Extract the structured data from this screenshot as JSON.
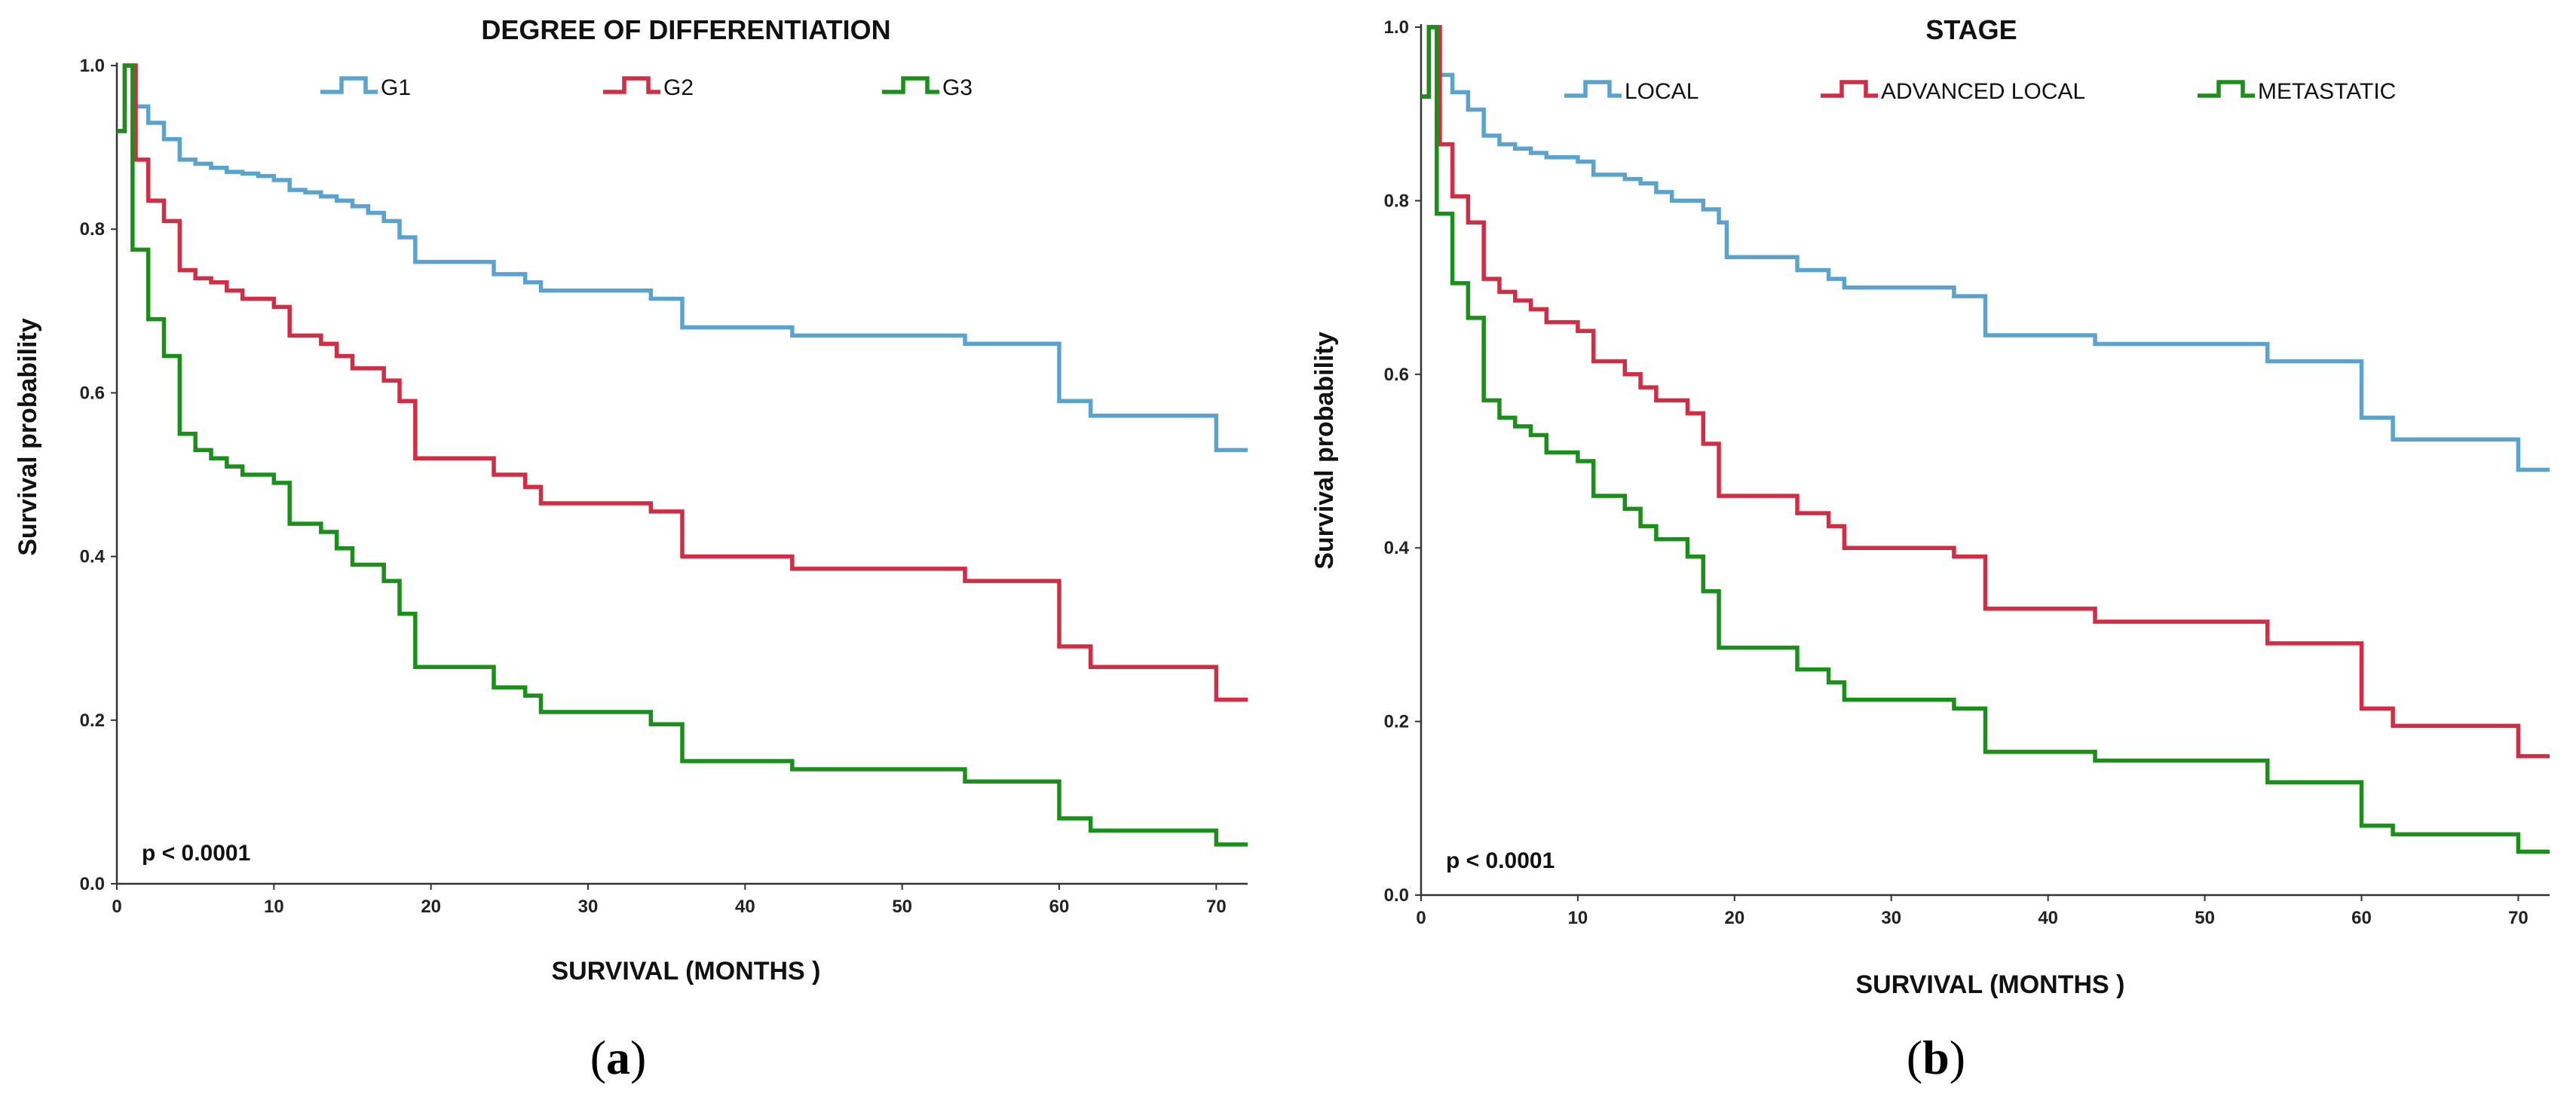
{
  "chart_data": [
    {
      "type": "line",
      "subtype": "kaplan-meier step",
      "panel_label": "a",
      "title": "DEGREE OF DIFFERENTIATION",
      "xlabel": "SURVIVAL (MONTHS )",
      "ylabel": "Survival probability",
      "xlim": [
        0,
        72
      ],
      "ylim": [
        0,
        1
      ],
      "x_ticks": [
        "0",
        "10",
        "20",
        "30",
        "40",
        "50",
        "60",
        "70"
      ],
      "y_ticks": [
        "0.0",
        "0.2",
        "0.4",
        "0.6",
        "0.8",
        "1.0"
      ],
      "annotation": "p < 0.0001",
      "legend_position": "top",
      "series": [
        {
          "name": "G1",
          "color": "#5ba3cf",
          "points": [
            [
              0,
              0.92
            ],
            [
              0.5,
              1.0
            ],
            [
              1.2,
              0.95
            ],
            [
              2,
              0.93
            ],
            [
              3,
              0.91
            ],
            [
              4,
              0.885
            ],
            [
              5,
              0.88
            ],
            [
              6,
              0.875
            ],
            [
              7,
              0.87
            ],
            [
              8,
              0.868
            ],
            [
              9,
              0.865
            ],
            [
              10,
              0.86
            ],
            [
              11,
              0.848
            ],
            [
              12,
              0.845
            ],
            [
              13,
              0.84
            ],
            [
              14,
              0.835
            ],
            [
              15,
              0.828
            ],
            [
              16,
              0.82
            ],
            [
              17,
              0.81
            ],
            [
              18,
              0.79
            ],
            [
              19,
              0.76
            ],
            [
              24,
              0.745
            ],
            [
              26,
              0.735
            ],
            [
              27,
              0.725
            ],
            [
              34,
              0.715
            ],
            [
              36,
              0.68
            ],
            [
              43,
              0.67
            ],
            [
              54,
              0.66
            ],
            [
              60,
              0.59
            ],
            [
              62,
              0.572
            ],
            [
              70,
              0.53
            ],
            [
              72,
              0.53
            ]
          ]
        },
        {
          "name": "G2",
          "color": "#d12e45",
          "points": [
            [
              0,
              0.92
            ],
            [
              0.5,
              1.0
            ],
            [
              1.2,
              0.885
            ],
            [
              2,
              0.835
            ],
            [
              3,
              0.81
            ],
            [
              4,
              0.75
            ],
            [
              5,
              0.74
            ],
            [
              6,
              0.735
            ],
            [
              7,
              0.725
            ],
            [
              8,
              0.715
            ],
            [
              10,
              0.705
            ],
            [
              11,
              0.67
            ],
            [
              13,
              0.66
            ],
            [
              14,
              0.645
            ],
            [
              15,
              0.63
            ],
            [
              17,
              0.615
            ],
            [
              18,
              0.59
            ],
            [
              19,
              0.52
            ],
            [
              24,
              0.5
            ],
            [
              26,
              0.485
            ],
            [
              27,
              0.465
            ],
            [
              34,
              0.455
            ],
            [
              36,
              0.4
            ],
            [
              43,
              0.385
            ],
            [
              54,
              0.37
            ],
            [
              60,
              0.29
            ],
            [
              62,
              0.265
            ],
            [
              70,
              0.225
            ],
            [
              72,
              0.225
            ]
          ]
        },
        {
          "name": "G3",
          "color": "#1a8f1a",
          "points": [
            [
              0,
              0.92
            ],
            [
              0.5,
              1.0
            ],
            [
              1,
              0.775
            ],
            [
              2,
              0.69
            ],
            [
              3,
              0.645
            ],
            [
              4,
              0.55
            ],
            [
              5,
              0.53
            ],
            [
              6,
              0.52
            ],
            [
              7,
              0.51
            ],
            [
              8,
              0.5
            ],
            [
              10,
              0.49
            ],
            [
              11,
              0.44
            ],
            [
              13,
              0.43
            ],
            [
              14,
              0.41
            ],
            [
              15,
              0.39
            ],
            [
              17,
              0.37
            ],
            [
              18,
              0.33
            ],
            [
              19,
              0.265
            ],
            [
              24,
              0.24
            ],
            [
              26,
              0.23
            ],
            [
              27,
              0.21
            ],
            [
              34,
              0.195
            ],
            [
              36,
              0.15
            ],
            [
              43,
              0.14
            ],
            [
              54,
              0.125
            ],
            [
              60,
              0.08
            ],
            [
              62,
              0.065
            ],
            [
              70,
              0.048
            ],
            [
              72,
              0.048
            ]
          ]
        }
      ]
    },
    {
      "type": "line",
      "subtype": "kaplan-meier step",
      "panel_label": "b",
      "title": "STAGE",
      "xlabel": "SURVIVAL (MONTHS )",
      "ylabel": "Survival probability",
      "xlim": [
        0,
        72
      ],
      "ylim": [
        0,
        1
      ],
      "x_ticks": [
        "0",
        "10",
        "20",
        "30",
        "40",
        "50",
        "60",
        "70"
      ],
      "y_ticks": [
        "0.0",
        "0.2",
        "0.4",
        "0.6",
        "0.8",
        "1.0"
      ],
      "annotation": "p < 0.0001",
      "legend_position": "top",
      "series": [
        {
          "name": "LOCAL",
          "color": "#5ba3cf",
          "points": [
            [
              0,
              0.92
            ],
            [
              0.5,
              1.0
            ],
            [
              1.2,
              0.945
            ],
            [
              2,
              0.925
            ],
            [
              3,
              0.905
            ],
            [
              4,
              0.875
            ],
            [
              5,
              0.865
            ],
            [
              6,
              0.86
            ],
            [
              7,
              0.855
            ],
            [
              8,
              0.85
            ],
            [
              10,
              0.845
            ],
            [
              11,
              0.83
            ],
            [
              13,
              0.825
            ],
            [
              14,
              0.82
            ],
            [
              15,
              0.81
            ],
            [
              16,
              0.8
            ],
            [
              18,
              0.79
            ],
            [
              19,
              0.775
            ],
            [
              19.5,
              0.735
            ],
            [
              24,
              0.72
            ],
            [
              26,
              0.71
            ],
            [
              27,
              0.7
            ],
            [
              34,
              0.69
            ],
            [
              36,
              0.645
            ],
            [
              43,
              0.635
            ],
            [
              54,
              0.615
            ],
            [
              60,
              0.55
            ],
            [
              62,
              0.525
            ],
            [
              70,
              0.49
            ],
            [
              72,
              0.49
            ]
          ]
        },
        {
          "name": "ADVANCED LOCAL",
          "color": "#d12e45",
          "points": [
            [
              0,
              0.92
            ],
            [
              0.5,
              1.0
            ],
            [
              1.2,
              0.865
            ],
            [
              2,
              0.805
            ],
            [
              3,
              0.775
            ],
            [
              4,
              0.71
            ],
            [
              5,
              0.695
            ],
            [
              6,
              0.685
            ],
            [
              7,
              0.675
            ],
            [
              8,
              0.66
            ],
            [
              10,
              0.65
            ],
            [
              11,
              0.615
            ],
            [
              13,
              0.6
            ],
            [
              14,
              0.585
            ],
            [
              15,
              0.57
            ],
            [
              17,
              0.555
            ],
            [
              18,
              0.52
            ],
            [
              19,
              0.46
            ],
            [
              24,
              0.44
            ],
            [
              26,
              0.425
            ],
            [
              27,
              0.4
            ],
            [
              34,
              0.39
            ],
            [
              36,
              0.33
            ],
            [
              43,
              0.315
            ],
            [
              54,
              0.29
            ],
            [
              60,
              0.215
            ],
            [
              62,
              0.195
            ],
            [
              70,
              0.16
            ],
            [
              72,
              0.16
            ]
          ]
        },
        {
          "name": "METASTATIC",
          "color": "#1a8f1a",
          "points": [
            [
              0,
              0.92
            ],
            [
              0.5,
              1.0
            ],
            [
              1,
              0.785
            ],
            [
              2,
              0.705
            ],
            [
              3,
              0.665
            ],
            [
              4,
              0.57
            ],
            [
              5,
              0.55
            ],
            [
              6,
              0.54
            ],
            [
              7,
              0.53
            ],
            [
              8,
              0.51
            ],
            [
              10,
              0.5
            ],
            [
              11,
              0.46
            ],
            [
              13,
              0.445
            ],
            [
              14,
              0.425
            ],
            [
              15,
              0.41
            ],
            [
              17,
              0.39
            ],
            [
              18,
              0.35
            ],
            [
              19,
              0.285
            ],
            [
              24,
              0.26
            ],
            [
              26,
              0.245
            ],
            [
              27,
              0.225
            ],
            [
              34,
              0.215
            ],
            [
              36,
              0.165
            ],
            [
              43,
              0.155
            ],
            [
              54,
              0.13
            ],
            [
              60,
              0.08
            ],
            [
              62,
              0.07
            ],
            [
              70,
              0.05
            ],
            [
              72,
              0.05
            ]
          ]
        }
      ]
    }
  ]
}
